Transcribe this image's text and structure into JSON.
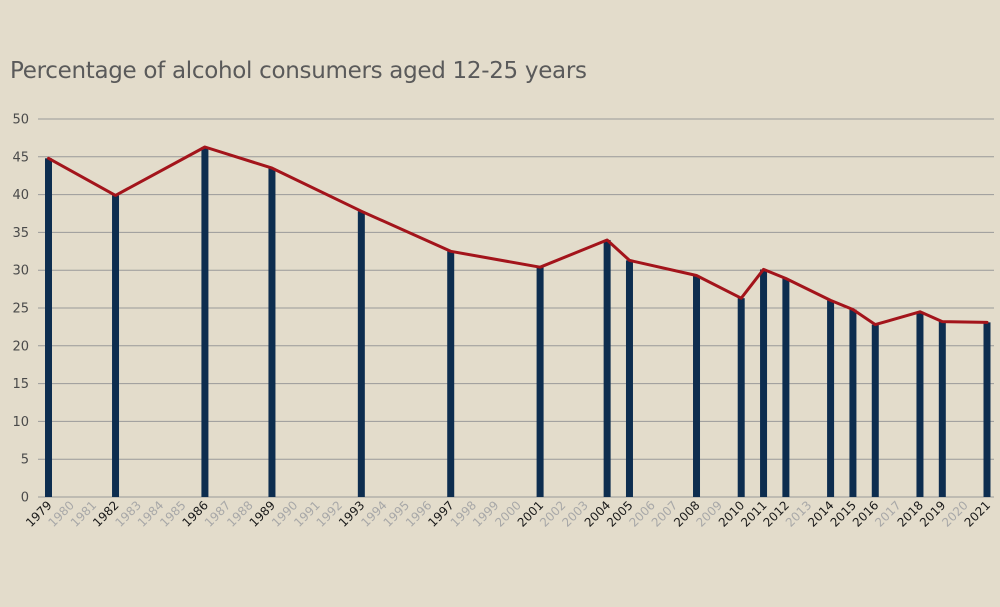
{
  "chart_data": {
    "type": "bar",
    "title": "Percentage of alcohol consumers aged 12-25 years",
    "xlabel": "",
    "ylabel": "",
    "ylim": [
      0,
      50
    ],
    "yticks": [
      0,
      5,
      10,
      15,
      20,
      25,
      30,
      35,
      40,
      45,
      50
    ],
    "grid": true,
    "categories": [
      "1979",
      "1980",
      "1981",
      "1982",
      "1983",
      "1984",
      "1985",
      "1986",
      "1987",
      "1988",
      "1989",
      "1990",
      "1991",
      "1992",
      "1993",
      "1994",
      "1995",
      "1996",
      "1997",
      "1998",
      "1999",
      "2000",
      "2001",
      "2002",
      "2003",
      "2004",
      "2005",
      "2006",
      "2007",
      "2008",
      "2009",
      "2010",
      "2011",
      "2012",
      "2013",
      "2014",
      "2015",
      "2016",
      "2017",
      "2018",
      "2019",
      "2020",
      "2021"
    ],
    "series": [
      {
        "type": "bar",
        "values": [
          44.8,
          null,
          null,
          39.9,
          null,
          null,
          null,
          46.3,
          null,
          null,
          43.5,
          null,
          null,
          null,
          37.8,
          null,
          null,
          null,
          32.5,
          null,
          null,
          null,
          30.4,
          null,
          null,
          34.0,
          31.3,
          null,
          null,
          29.3,
          null,
          26.3,
          30.1,
          28.9,
          null,
          26.0,
          24.8,
          22.8,
          null,
          24.5,
          23.2,
          null,
          23.1
        ],
        "color": "#0d2d4f"
      },
      {
        "type": "line",
        "values": [
          44.8,
          null,
          null,
          39.9,
          null,
          null,
          null,
          46.3,
          null,
          null,
          43.5,
          null,
          null,
          null,
          37.8,
          null,
          null,
          null,
          32.5,
          null,
          null,
          null,
          30.4,
          null,
          null,
          34.0,
          31.3,
          null,
          null,
          29.3,
          null,
          26.3,
          30.1,
          28.9,
          null,
          26.0,
          24.8,
          22.8,
          null,
          24.5,
          23.2,
          null,
          23.1
        ],
        "color": "#a3141b"
      }
    ],
    "colors": {
      "background": "#e3dccb",
      "grid": "#9a9a9a",
      "label_with_data": "#1a1a1a",
      "label_without_data": "#a8a8a8"
    }
  }
}
